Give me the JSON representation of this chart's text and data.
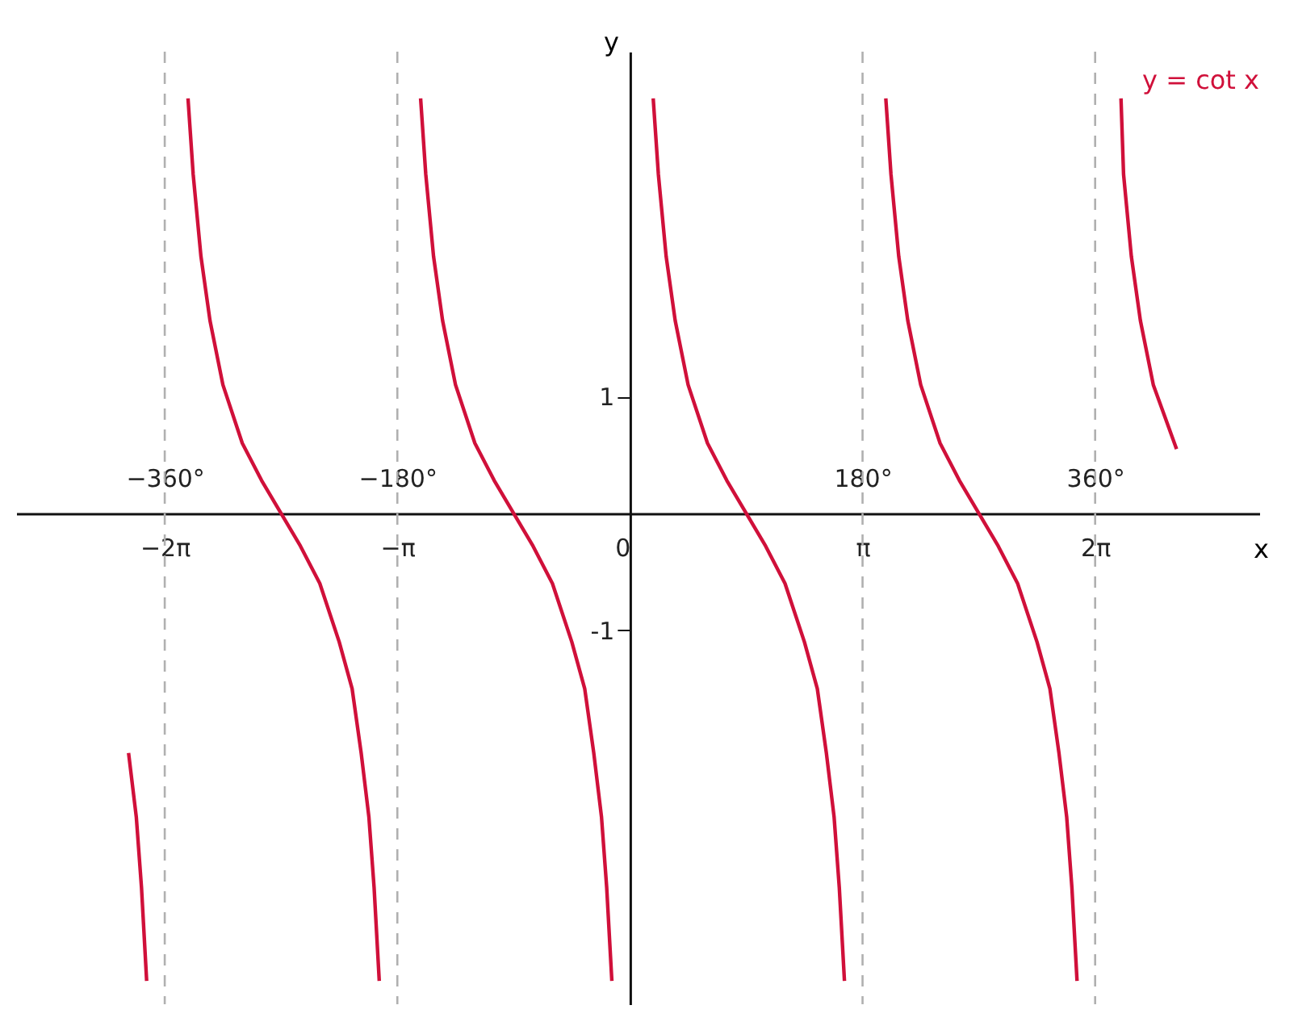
{
  "chart_data": {
    "type": "line",
    "xlabel": "x",
    "ylabel": "y",
    "xlim": [
      -475,
      487
    ],
    "ylim": [
      -4.2,
      3.95
    ],
    "xticks": [
      {
        "value": -360,
        "label": "−360°"
      },
      {
        "value": -180,
        "label": "−180°"
      },
      {
        "value": 180,
        "label": "180°"
      },
      {
        "value": 360,
        "label": "360°"
      }
    ],
    "x2lim": [
      -8.29,
      8.5
    ],
    "x2ticks": [
      {
        "value": -6.283,
        "label": "−2π"
      },
      {
        "value": -3.1416,
        "label": "−π"
      },
      {
        "value": 0,
        "label": "0"
      },
      {
        "value": 3.1416,
        "label": "π"
      },
      {
        "value": 6.283,
        "label": "2π"
      }
    ],
    "yticks": [
      1,
      -1
    ],
    "grid": false,
    "ref_lines": [
      {
        "axis": "x",
        "value": -360,
        "color": "#b0b0b0",
        "line_style": "dashed"
      },
      {
        "axis": "x",
        "value": -180,
        "color": "#b0b0b0",
        "line_style": "dashed"
      },
      {
        "axis": "x",
        "value": 180,
        "color": "#b0b0b0",
        "line_style": "dashed"
      },
      {
        "axis": "x",
        "value": 360,
        "color": "#b0b0b0",
        "line_style": "dashed"
      }
    ],
    "series": [
      {
        "name": "y = cot x",
        "color": "#d0103a",
        "x": [
          -388,
          -382,
          -378,
          -374,
          -360,
          -342,
          -338,
          -332,
          -325,
          -315,
          -300,
          -285,
          -270,
          -255,
          -240,
          -225,
          -215,
          -208,
          -202,
          -198,
          -194,
          -180,
          -162,
          -158,
          -152,
          -145,
          -135,
          -120,
          -105,
          -90,
          -75,
          -60,
          -45,
          -35,
          -28,
          -22,
          -18,
          -14,
          0,
          18,
          22,
          28,
          35,
          45,
          60,
          75,
          90,
          105,
          120,
          135,
          145,
          152,
          158,
          162,
          166,
          180,
          198,
          202,
          208,
          215,
          225,
          240,
          255,
          270,
          285,
          300,
          315,
          325,
          332,
          338,
          342,
          346,
          360,
          380,
          382,
          388,
          395,
          405,
          423
        ],
        "values": [
          -2.05,
          -2.6,
          -3.2,
          -4.0,
          null,
          3.55,
          2.9,
          2.2,
          1.65,
          1.1,
          0.6,
          0.28,
          0,
          -0.28,
          -0.6,
          -1.1,
          -1.5,
          -2.05,
          -2.6,
          -3.2,
          -4.0,
          null,
          3.55,
          2.9,
          2.2,
          1.65,
          1.1,
          0.6,
          0.28,
          0,
          -0.28,
          -0.6,
          -1.1,
          -1.5,
          -2.05,
          -2.6,
          -3.2,
          -4.0,
          null,
          3.55,
          2.9,
          2.2,
          1.65,
          1.1,
          0.6,
          0.28,
          0,
          -0.28,
          -0.6,
          -1.1,
          -1.5,
          -2.05,
          -2.6,
          -3.2,
          -4.0,
          null,
          3.55,
          2.9,
          2.2,
          1.65,
          1.1,
          0.6,
          0.28,
          0,
          -0.28,
          -0.6,
          -1.1,
          -1.5,
          -2.05,
          -2.6,
          -3.2,
          -4.0,
          null,
          3.55,
          2.9,
          2.2,
          1.65,
          1.1,
          0.55
        ]
      }
    ]
  }
}
